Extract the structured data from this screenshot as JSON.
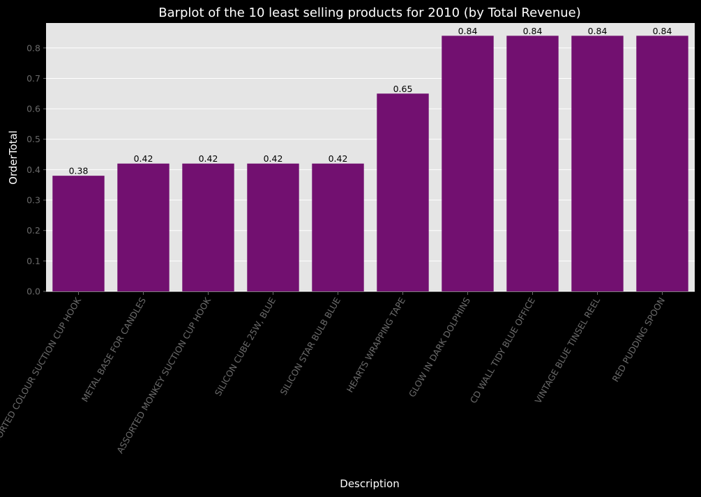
{
  "chart_data": {
    "type": "bar",
    "title": "Barplot of the 10 least selling products for 2010 (by Total Revenue)",
    "xlabel": "Description",
    "ylabel": "OrderTotal",
    "categories": [
      "ASSORTED COLOUR SUCTION CUP HOOK",
      "METAL BASE FOR CANDLES",
      "ASSORTED MONKEY SUCTION CUP HOOK",
      "SILICON CUBE 25W, BLUE",
      "SILICON STAR BULB  BLUE",
      "HEARTS WRAPPING TAPE",
      "GLOW IN DARK DOLPHINS",
      "CD WALL TIDY BLUE OFFICE",
      "VINTAGE BLUE TINSEL REEL",
      "RED PUDDING SPOON"
    ],
    "values": [
      0.38,
      0.42,
      0.42,
      0.42,
      0.42,
      0.65,
      0.84,
      0.84,
      0.84,
      0.84
    ],
    "data_labels": [
      "0.38",
      "0.42",
      "0.42",
      "0.42",
      "0.42",
      "0.65",
      "0.84",
      "0.84",
      "0.84",
      "0.84"
    ],
    "yticks": [
      "0.0",
      "0.1",
      "0.2",
      "0.3",
      "0.4",
      "0.5",
      "0.6",
      "0.7",
      "0.8"
    ],
    "ylim": [
      0,
      0.882
    ],
    "grid": true,
    "colors": {
      "bar": "#721070",
      "plot_background": "#e5e5e5",
      "figure_background": "#000000",
      "grid": "#ffffff"
    }
  }
}
